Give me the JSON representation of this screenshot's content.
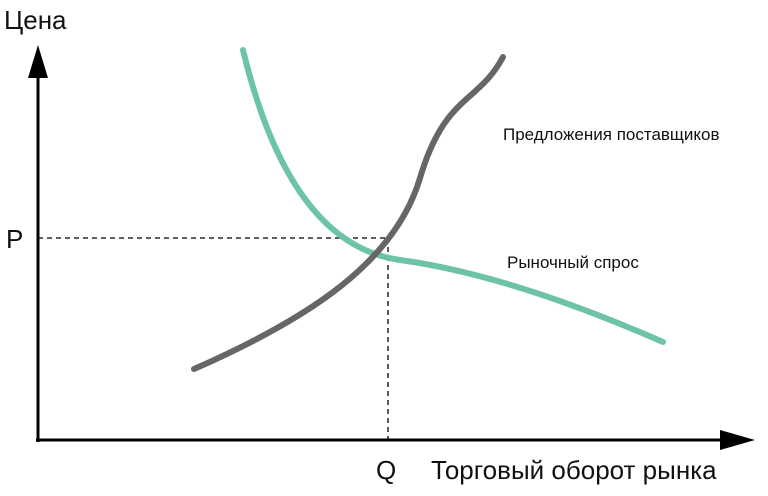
{
  "axes": {
    "y_label": "Цена",
    "x_label": "Торговый оборот рынка"
  },
  "equilibrium": {
    "price_label": "P",
    "quantity_label": "Q"
  },
  "curves": {
    "supply": {
      "label": "Предложения поставщиков",
      "color": "#666666"
    },
    "demand": {
      "label": "Рыночный спрос",
      "color": "#6cc4a4"
    }
  },
  "colors": {
    "axis": "#000000",
    "background": "#ffffff"
  }
}
